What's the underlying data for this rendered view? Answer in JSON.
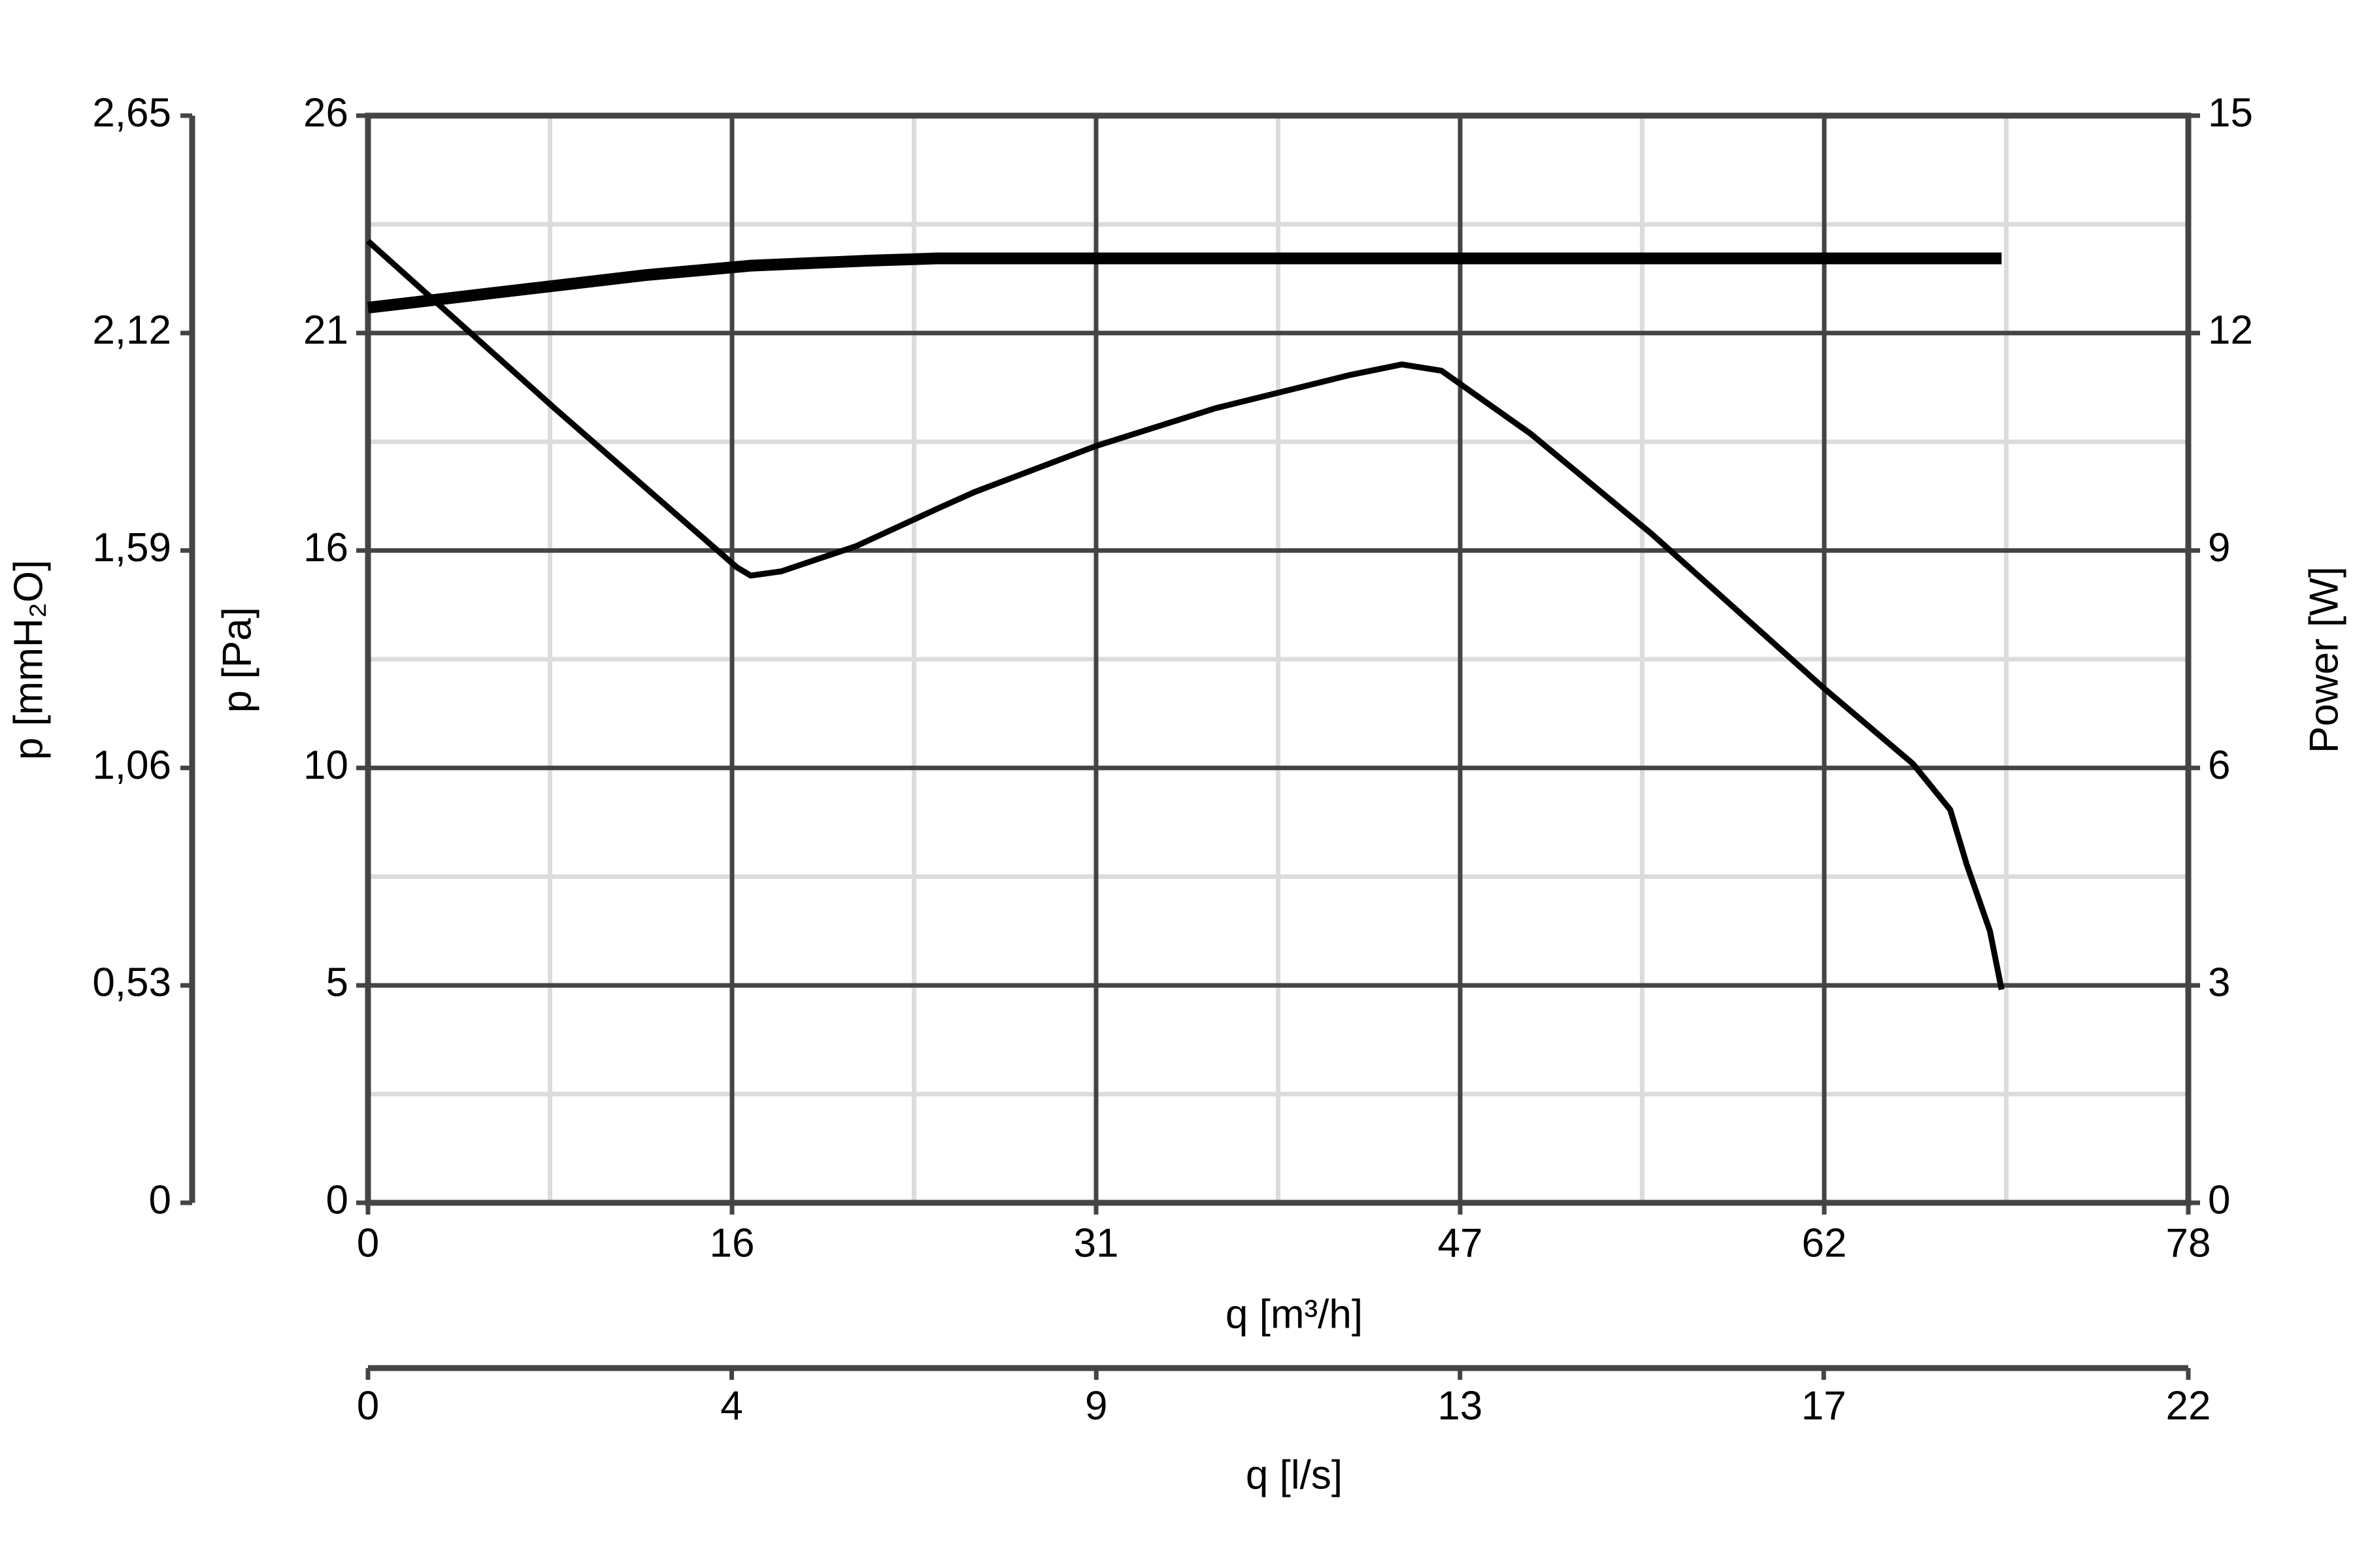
{
  "chart_data": {
    "type": "line",
    "xlabel": "q [m³/h]",
    "xlim": [
      0,
      78
    ],
    "xticks": [
      0,
      {
        "value": 15.6,
        "label": "16"
      },
      {
        "value": 31.2,
        "label": "31"
      },
      {
        "value": 46.8,
        "label": "47"
      },
      {
        "value": 62.4,
        "label": "62"
      },
      78
    ],
    "x2label": "q [l/s]",
    "x2lim": [
      0,
      21.67
    ],
    "x2ticks": [
      0,
      {
        "value": 4.33,
        "label": "4"
      },
      {
        "value": 8.67,
        "label": "9"
      },
      13,
      {
        "value": 17.33,
        "label": "17"
      },
      {
        "value": 21.67,
        "label": "22"
      }
    ],
    "ylabel": "p [Pa]",
    "ylim": [
      0,
      26
    ],
    "yticks": [
      0,
      {
        "value": 5.2,
        "label": "5"
      },
      {
        "value": 10.4,
        "label": "10"
      },
      {
        "value": 15.6,
        "label": "16"
      },
      {
        "value": 20.8,
        "label": "21"
      },
      26
    ],
    "y2label": "Power [W]",
    "y2lim": [
      0,
      15
    ],
    "y2ticks": [
      0,
      3,
      6,
      9,
      12,
      15
    ],
    "y3label": "p [mmH₂O]",
    "y3lim": [
      0,
      2.65
    ],
    "y3ticks": [
      0,
      {
        "value": 0.53,
        "label": "0,53"
      },
      {
        "value": 1.06,
        "label": "1,06"
      },
      {
        "value": 1.59,
        "label": "1,59"
      },
      {
        "value": 2.12,
        "label": "2,12"
      },
      {
        "value": 2.65,
        "label": "2,65"
      }
    ],
    "grid": true,
    "series": [
      {
        "color": "#000000",
        "x": [
          0,
          8.0,
          15.8,
          16.4,
          17.7,
          20.9,
          24.4,
          26.0,
          31.2,
          36.3,
          42.1,
          44.3,
          46.0,
          49.8,
          55.0,
          62.4,
          66.2,
          67.8,
          68.5,
          69.5,
          70.0
        ],
        "values": [
          23.0,
          19.0,
          15.2,
          15.0,
          15.1,
          15.7,
          16.6,
          17.0,
          18.1,
          19.0,
          19.8,
          20.05,
          19.9,
          18.4,
          16.0,
          12.3,
          10.5,
          9.4,
          8.1,
          6.5,
          5.1
        ]
      },
      {
        "color": "#000000",
        "axis": "y2",
        "x": [
          0,
          11.9,
          16.4,
          21.5,
          24.4,
          70.0
        ],
        "values": [
          12.35,
          12.8,
          12.93,
          13.0,
          13.03,
          13.03
        ]
      }
    ]
  }
}
